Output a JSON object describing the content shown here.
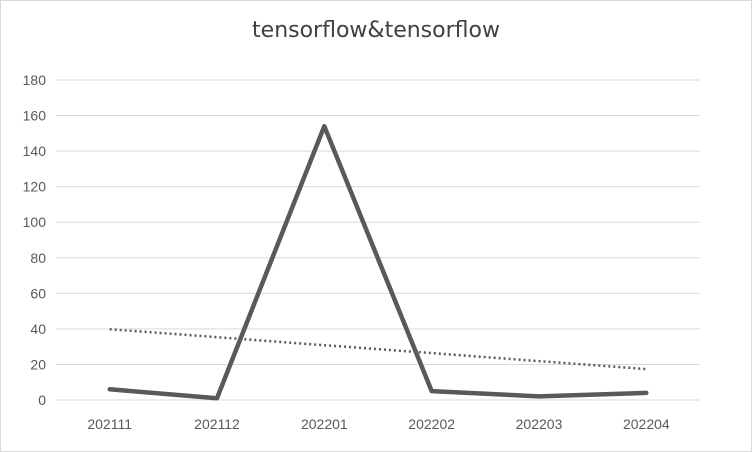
{
  "chart_data": {
    "type": "line",
    "title": "tensorflow&tensorflow",
    "categories": [
      "202111",
      "202112",
      "202201",
      "202202",
      "202203",
      "202204"
    ],
    "series": [
      {
        "values": [
          6,
          1,
          154,
          5,
          2,
          4
        ],
        "style": "solid",
        "color": "#595959"
      },
      {
        "values": [
          39.8,
          35.3,
          30.8,
          26.4,
          21.9,
          17.4
        ],
        "style": "dotted",
        "color": "#595959"
      }
    ],
    "ylim": [
      0,
      180
    ],
    "yticks": [
      0,
      20,
      40,
      60,
      80,
      100,
      120,
      140,
      160,
      180
    ],
    "grid": true,
    "legend": "none",
    "xlabel": "",
    "ylabel": ""
  }
}
